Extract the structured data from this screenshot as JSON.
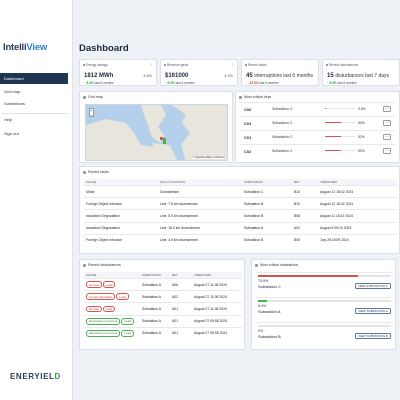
{
  "app": {
    "logo_main": "Intelli",
    "logo_accent": "View",
    "brand": "ENERYIELD"
  },
  "sidebar": {
    "items": [
      {
        "label": "Dashboard"
      },
      {
        "label": "Grid map"
      },
      {
        "label": "Substations"
      },
      {
        "label": "Help"
      },
      {
        "label": "Sign out"
      }
    ]
  },
  "page": {
    "title": "Dashboard"
  },
  "kpis": [
    {
      "title": "Energy savings",
      "help": "?",
      "value": "1812 MWh",
      "value_sub": "",
      "percent": "4.8%",
      "trend_arrow": "↑",
      "trend_value": "8.4%",
      "trend_text": "last 6 months",
      "trend_dir": "up"
    },
    {
      "title": "Revenue gains",
      "help": "?",
      "value": "$161000",
      "value_sub": "",
      "percent": "4.2%",
      "trend_arrow": "↑",
      "trend_value": "8.3%",
      "trend_text": "last 6 months",
      "trend_dir": "up"
    },
    {
      "title": "Recent faults",
      "help": "",
      "value": "45",
      "value_sub": "interruptions last 6 months",
      "percent": "",
      "trend_arrow": "↓",
      "trend_value": "-25.5%",
      "trend_text": "last 6 months",
      "trend_dir": "down"
    },
    {
      "title": "Recent disturbances",
      "help": "",
      "value": "15",
      "value_sub": "disturbances last 7 days",
      "percent": "",
      "trend_arrow": "↑",
      "trend_value": "8.4%",
      "trend_text": "last 6 months",
      "trend_dir": "up"
    }
  ],
  "grid_map": {
    "title": "Grid map",
    "zoom_in": "+",
    "zoom_out": "−",
    "attribution": "© OpenStreetMap contributors"
  },
  "critical_keys": {
    "title": "Most critical keys",
    "rows": [
      {
        "key": "C06",
        "substation": "Substation C",
        "percent_value": 0.8,
        "percent": "0.8%",
        "button": "⋯"
      },
      {
        "key": "C03",
        "substation": "Substation C",
        "percent_value": 52,
        "percent": "52%",
        "button": "⋯"
      },
      {
        "key": "C01",
        "substation": "Substation C",
        "percent_value": 52,
        "percent": "52%",
        "button": "⋯"
      },
      {
        "key": "C02",
        "substation": "Substation C",
        "percent_value": 52,
        "percent": "52%",
        "button": "⋯"
      }
    ]
  },
  "recent_faults": {
    "title": "Recent faults",
    "headers": [
      "CAUSE",
      "FAULT LOCATION",
      "SUBSTATION",
      "BAY",
      "TIMESTAMP"
    ],
    "rows": [
      [
        "Motor",
        "Downstream",
        "Substation C",
        "B10",
        "August 12 18:42 2024"
      ],
      [
        "Foreign Object Intrusion",
        "Line, 7.5 km downstream",
        "Substation B",
        "B10",
        "August 12 18:42 2024"
      ],
      [
        "Insulation Degradation",
        "Line, 5.5 km downstream",
        "Substation B",
        "B08",
        "August 11 18:42 2024"
      ],
      [
        "Insulation Degradation",
        "Line, 18.0 km downstream",
        "Substation A",
        "A02",
        "August 5 09:10 2024"
      ],
      [
        "Foreign Object Intrusion",
        "Line, 4.5 km downstream",
        "Substation B",
        "B05",
        "July 28 18:09 2024"
      ]
    ]
  },
  "recent_disturbances": {
    "title": "Recent disturbances",
    "headers": [
      "CAUSE",
      "SUBSTATION",
      "BAY",
      "TIMESTAMP"
    ],
    "rows": [
      {
        "tags": [
          {
            "label": "Normal",
            "color": "red"
          },
          {
            "label": "Load",
            "color": "red"
          }
        ],
        "substation": "Substation A",
        "bay": "A06",
        "timestamp": "August 27 11:08 2024"
      },
      {
        "tags": [
          {
            "label": "Current Deviation",
            "color": "red"
          },
          {
            "label": "Load",
            "color": "red"
          }
        ],
        "substation": "Substation A",
        "bay": "A02",
        "timestamp": "August 27 11:08 2024"
      },
      {
        "tags": [
          {
            "label": "Normal",
            "color": "red"
          },
          {
            "label": "Load",
            "color": "red"
          }
        ],
        "substation": "Substation A",
        "bay": "A01",
        "timestamp": "August 27 11:08 2024"
      },
      {
        "tags": [
          {
            "label": "Harmonics in Current",
            "color": "green"
          },
          {
            "label": "Load",
            "color": "green"
          }
        ],
        "substation": "Substation A",
        "bay": "A01",
        "timestamp": "August 27 09:08 2024"
      },
      {
        "tags": [
          {
            "label": "Harmonics in Current",
            "color": "green"
          },
          {
            "label": "Load",
            "color": "green"
          }
        ],
        "substation": "Substation A",
        "bay": "A01",
        "timestamp": "August 27 09:08 2024"
      }
    ]
  },
  "critical_substations": {
    "title": "Most critical substations",
    "rows": [
      {
        "percent_value": 75.5,
        "percent": "75.5%",
        "name": "Substation C",
        "button": "VIEW SUBSTATION C",
        "color": "#d9534f"
      },
      {
        "percent_value": 6.4,
        "percent": "6.4%",
        "name": "Substation A",
        "button": "VIEW SUBSTATION A",
        "color": "#4caf50"
      },
      {
        "percent_value": 0,
        "percent": "0%",
        "name": "Substation B",
        "button": "VIEW SUBSTATION B",
        "color": "#4caf50"
      }
    ]
  }
}
